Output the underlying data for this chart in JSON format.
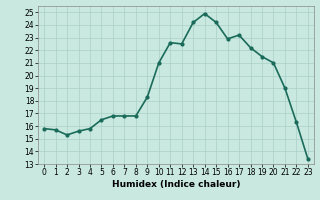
{
  "x": [
    0,
    1,
    2,
    3,
    4,
    5,
    6,
    7,
    8,
    9,
    10,
    11,
    12,
    13,
    14,
    15,
    16,
    17,
    18,
    19,
    20,
    21,
    22,
    23
  ],
  "y": [
    15.8,
    15.7,
    15.3,
    15.6,
    15.8,
    16.5,
    16.8,
    16.8,
    16.8,
    18.3,
    21.0,
    22.6,
    22.5,
    24.2,
    24.9,
    24.2,
    22.9,
    23.2,
    22.2,
    21.5,
    21.0,
    19.0,
    16.3,
    13.4
  ],
  "line_color": "#1a6b5a",
  "marker": "o",
  "marker_size": 2.0,
  "line_width": 1.2,
  "bg_color": "#c8e8e0",
  "grid_color": "#aacfc8",
  "xlabel": "Humidex (Indice chaleur)",
  "xlim": [
    -0.5,
    23.5
  ],
  "ylim": [
    13,
    25.5
  ],
  "yticks": [
    13,
    14,
    15,
    16,
    17,
    18,
    19,
    20,
    21,
    22,
    23,
    24,
    25
  ],
  "xticks": [
    0,
    1,
    2,
    3,
    4,
    5,
    6,
    7,
    8,
    9,
    10,
    11,
    12,
    13,
    14,
    15,
    16,
    17,
    18,
    19,
    20,
    21,
    22,
    23
  ],
  "tick_fontsize": 5.5,
  "xlabel_fontsize": 6.5
}
